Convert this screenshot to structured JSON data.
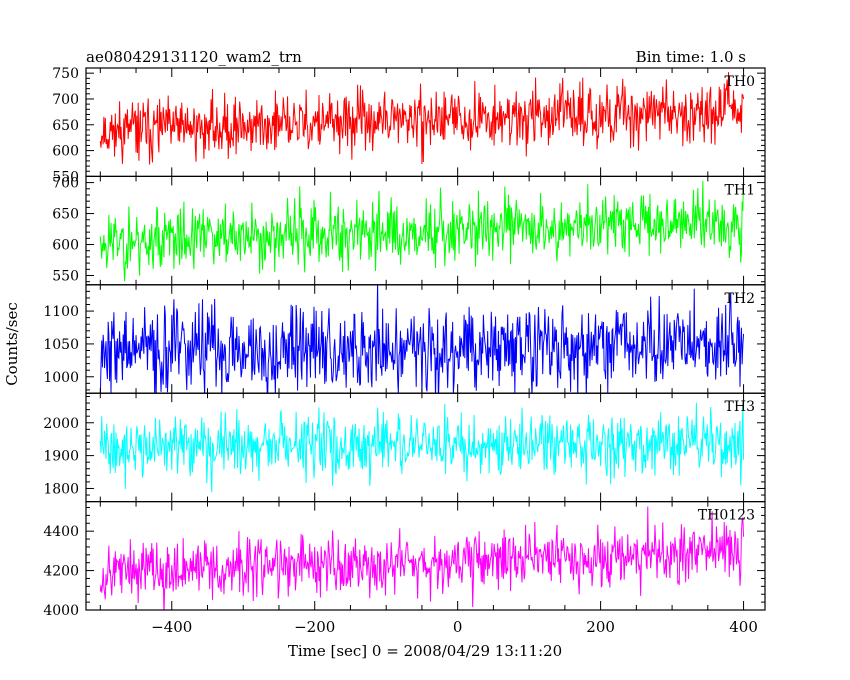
{
  "header": {
    "title": "ae080429131120_wam2_trn",
    "bin_time": "Bin time: 1.0 s"
  },
  "chart_data": {
    "type": "line",
    "title": "ae080429131120_wam2_trn",
    "subtitle": "Bin time: 1.0 s",
    "xlabel": "Time [sec] 0 = 2008/04/29 13:11:20",
    "ylabel": "Counts/sec",
    "xlim": [
      -520,
      430
    ],
    "x_start": -500,
    "x_end": 400,
    "x_step": 1,
    "xticks": [
      -400,
      -200,
      0,
      200,
      400
    ],
    "xtick_labels": [
      "−400",
      "−200",
      "0",
      "200",
      "400"
    ],
    "panels": [
      {
        "name": "TH0",
        "color": "#ff0000",
        "ylim": [
          550,
          760
        ],
        "yticks": [
          550,
          600,
          650,
          700,
          750
        ],
        "trend_start": 638,
        "trend_end": 680,
        "noise": 28,
        "seed": 11
      },
      {
        "name": "TH1",
        "color": "#00ff00",
        "ylim": [
          535,
          710
        ],
        "yticks": [
          550,
          600,
          650,
          700
        ],
        "trend_start": 605,
        "trend_end": 640,
        "noise": 26,
        "seed": 23
      },
      {
        "name": "TH2",
        "color": "#0000ff",
        "ylim": [
          975,
          1140
        ],
        "yticks": [
          1000,
          1050,
          1100
        ],
        "trend_start": 1040,
        "trend_end": 1048,
        "noise": 33,
        "seed": 37
      },
      {
        "name": "TH3",
        "color": "#00ffff",
        "ylim": [
          1760,
          2090
        ],
        "yticks": [
          1800,
          1900,
          2000
        ],
        "trend_start": 1925,
        "trend_end": 1938,
        "noise": 45,
        "seed": 41
      },
      {
        "name": "TH0123",
        "color": "#ff00ff",
        "ylim": [
          4000,
          4550
        ],
        "yticks": [
          4000,
          4200,
          4400
        ],
        "trend_start": 4195,
        "trend_end": 4300,
        "noise": 75,
        "seed": 53
      }
    ]
  }
}
